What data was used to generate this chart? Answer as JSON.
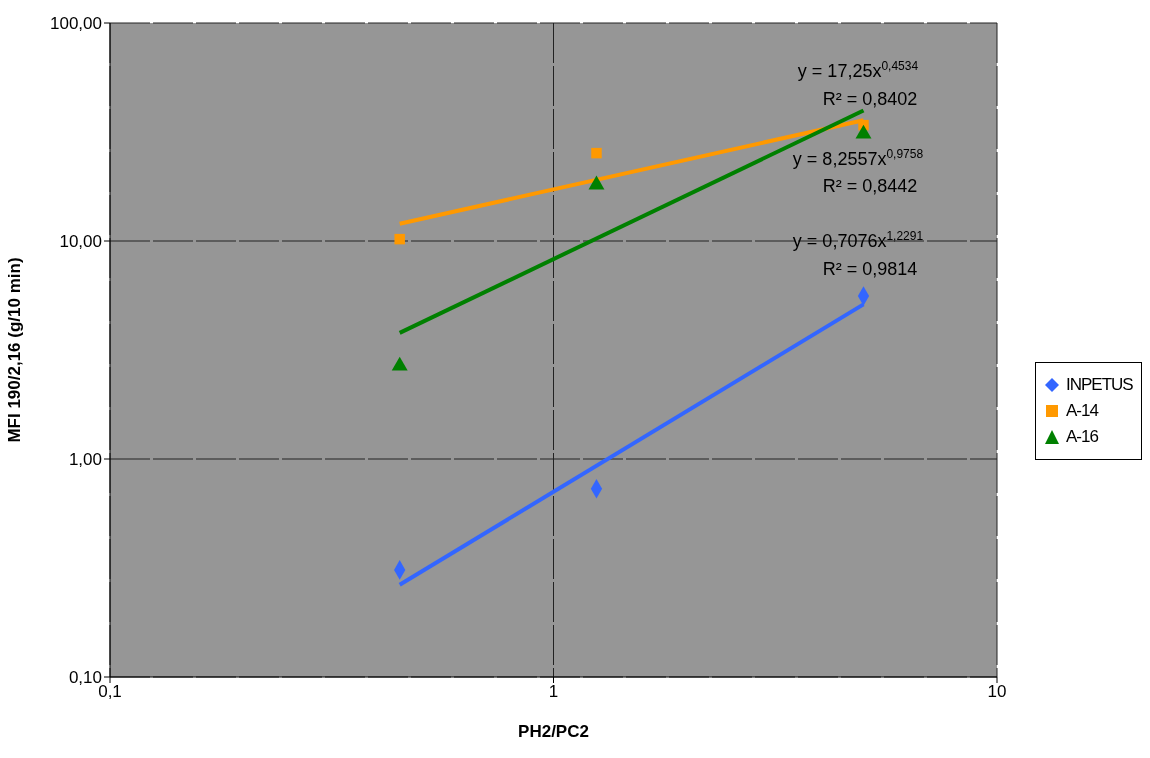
{
  "chart_data": {
    "type": "scatter",
    "xlabel": "PH2/PC2",
    "ylabel": "MFI 190/2,16 (g/10 min)",
    "log": "xy",
    "grid": true,
    "legend": "right",
    "xlim": [
      0.1,
      10
    ],
    "xticks": [
      {
        "value": 0.1,
        "label": "0,1"
      },
      1,
      10
    ],
    "ylim": [
      0.1,
      100
    ],
    "yticks": [
      {
        "value": 0.1,
        "label": "0,10"
      },
      {
        "value": 1,
        "label": "1,00"
      },
      {
        "value": 10,
        "label": "10,00"
      },
      {
        "value": 100,
        "label": "100,00"
      }
    ],
    "series": [
      {
        "name": "INPETUS",
        "type": "scatter",
        "marker": "diamond",
        "color": "#3366ff",
        "x": [
          0.45,
          1.25,
          5
        ],
        "values": [
          0.31,
          0.73,
          5.6
        ]
      },
      {
        "name": "A-14",
        "type": "scatter",
        "marker": "square",
        "color": "#ff9900",
        "x": [
          0.45,
          1.25,
          5
        ],
        "values": [
          10.2,
          25.3,
          34
        ]
      },
      {
        "name": "A-16",
        "type": "scatter",
        "marker": "triangle",
        "color": "#008000",
        "x": [
          0.45,
          1.25,
          5
        ],
        "values": [
          2.67,
          18.1,
          31
        ]
      },
      {
        "type": "line",
        "marker": "none",
        "color": "#3366ff",
        "x": [
          0.45,
          5
        ],
        "values": [
          0.265,
          5.12
        ]
      },
      {
        "type": "line",
        "marker": "none",
        "color": "#ff9900",
        "x": [
          0.45,
          5
        ],
        "values": [
          12.0,
          35.8
        ]
      },
      {
        "type": "line",
        "marker": "none",
        "color": "#008000",
        "x": [
          0.45,
          5
        ],
        "values": [
          3.79,
          39.7
        ]
      }
    ],
    "annotations": [
      "y = 17,25x$^{0,4534}$",
      "R² = 0,8402",
      "y = 8,2557x$^{0,9758}$",
      "R² = 0,8442",
      "y = 0,7076x$^{1,2291}$",
      "R² = 0,9814"
    ]
  }
}
